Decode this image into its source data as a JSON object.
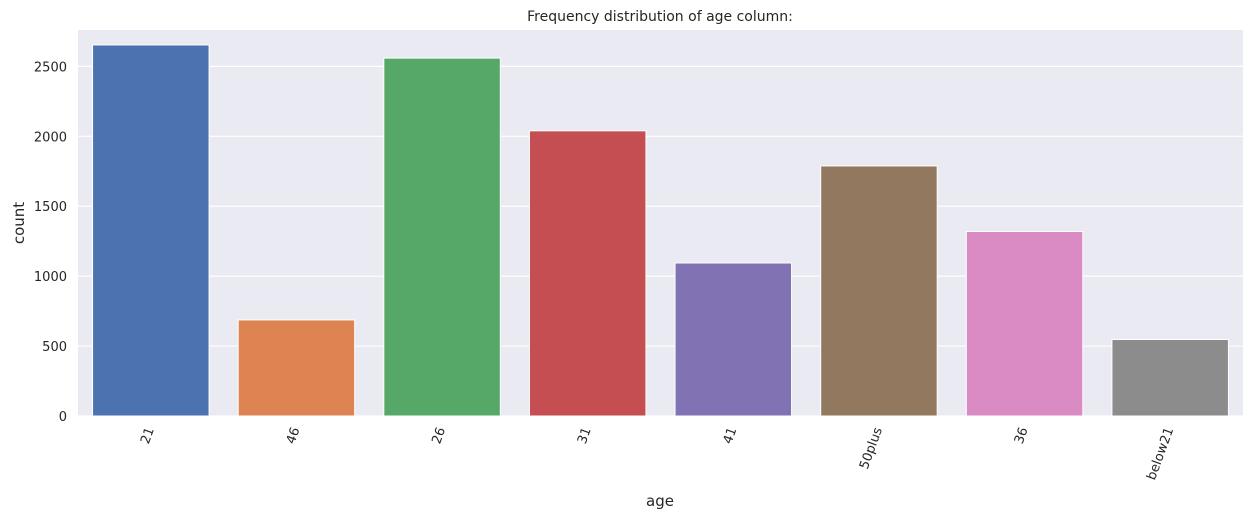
{
  "chart_data": {
    "type": "bar",
    "title": "Frequency distribution of age column:",
    "xlabel": "age",
    "ylabel": "count",
    "categories": [
      "21",
      "46",
      "26",
      "31",
      "41",
      "50plus",
      "36",
      "below21"
    ],
    "values": [
      2653,
      687,
      2559,
      2039,
      1094,
      1788,
      1319,
      547
    ],
    "ylim": [
      0,
      2760
    ],
    "yticks": [
      0,
      500,
      1000,
      1500,
      2000,
      2500
    ],
    "x_tick_rotation_deg": -70,
    "grid": true,
    "legend": "none",
    "colors": [
      "#4c72b0",
      "#dd8452",
      "#55a868",
      "#c44e52",
      "#8172b3",
      "#937860",
      "#da8bc3",
      "#8c8c8c"
    ],
    "background": "#eaeaf2",
    "grid_color": "#ffffff"
  }
}
